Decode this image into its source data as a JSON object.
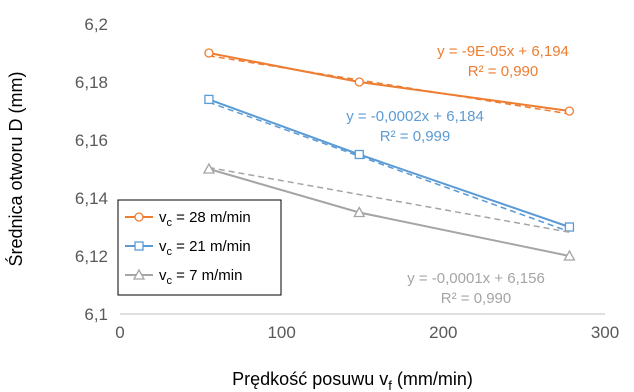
{
  "chart_data": {
    "type": "scatter",
    "xlabel": "Prędkość posuwu v",
    "xlabel_sub": "f",
    "xlabel_unit": " (mm/min)",
    "ylabel": "Średnica otworu D (mm)",
    "xlim": [
      0,
      300
    ],
    "ylim": [
      6.1,
      6.2
    ],
    "x_ticks": [
      0,
      100,
      200,
      300
    ],
    "x_tick_labels": [
      "0",
      "100",
      "200",
      "300"
    ],
    "y_ticks": [
      6.1,
      6.12,
      6.14,
      6.16,
      6.18,
      6.2
    ],
    "y_tick_labels": [
      "6,1",
      "6,12",
      "6,14",
      "6,16",
      "6,18",
      "6,2"
    ],
    "grid": "none",
    "legend_position": "bottom-left",
    "series": [
      {
        "legend_prefix": "v",
        "legend_sub": "c",
        "legend_suffix": " = 28 m/min",
        "color": "#ED7D31",
        "marker": "circle",
        "x": [
          55,
          148,
          278
        ],
        "y": [
          6.19,
          6.18,
          6.17
        ],
        "trendline": {
          "slope": -9e-05,
          "intercept": 6.194
        },
        "equation": "y = -9E-05x + 6,194",
        "r2": "R² = 0,990"
      },
      {
        "legend_prefix": "v",
        "legend_sub": "c",
        "legend_suffix": " = 21 m/min",
        "color": "#5B9BD5",
        "marker": "square",
        "x": [
          55,
          148,
          278
        ],
        "y": [
          6.174,
          6.155,
          6.13
        ],
        "trendline": {
          "slope": -0.0002,
          "intercept": 6.184
        },
        "equation": "y = -0,0002x + 6,184",
        "r2": "R² = 0,999"
      },
      {
        "legend_prefix": "v",
        "legend_sub": "c",
        "legend_suffix": " = 7 m/min",
        "color": "#A5A5A5",
        "marker": "triangle",
        "x": [
          55,
          148,
          278
        ],
        "y": [
          6.15,
          6.135,
          6.12
        ],
        "trendline": {
          "slope": -0.0001,
          "intercept": 6.156
        },
        "equation": "y = -0,0001x + 6,156",
        "r2": "R² = 0,990"
      }
    ]
  }
}
